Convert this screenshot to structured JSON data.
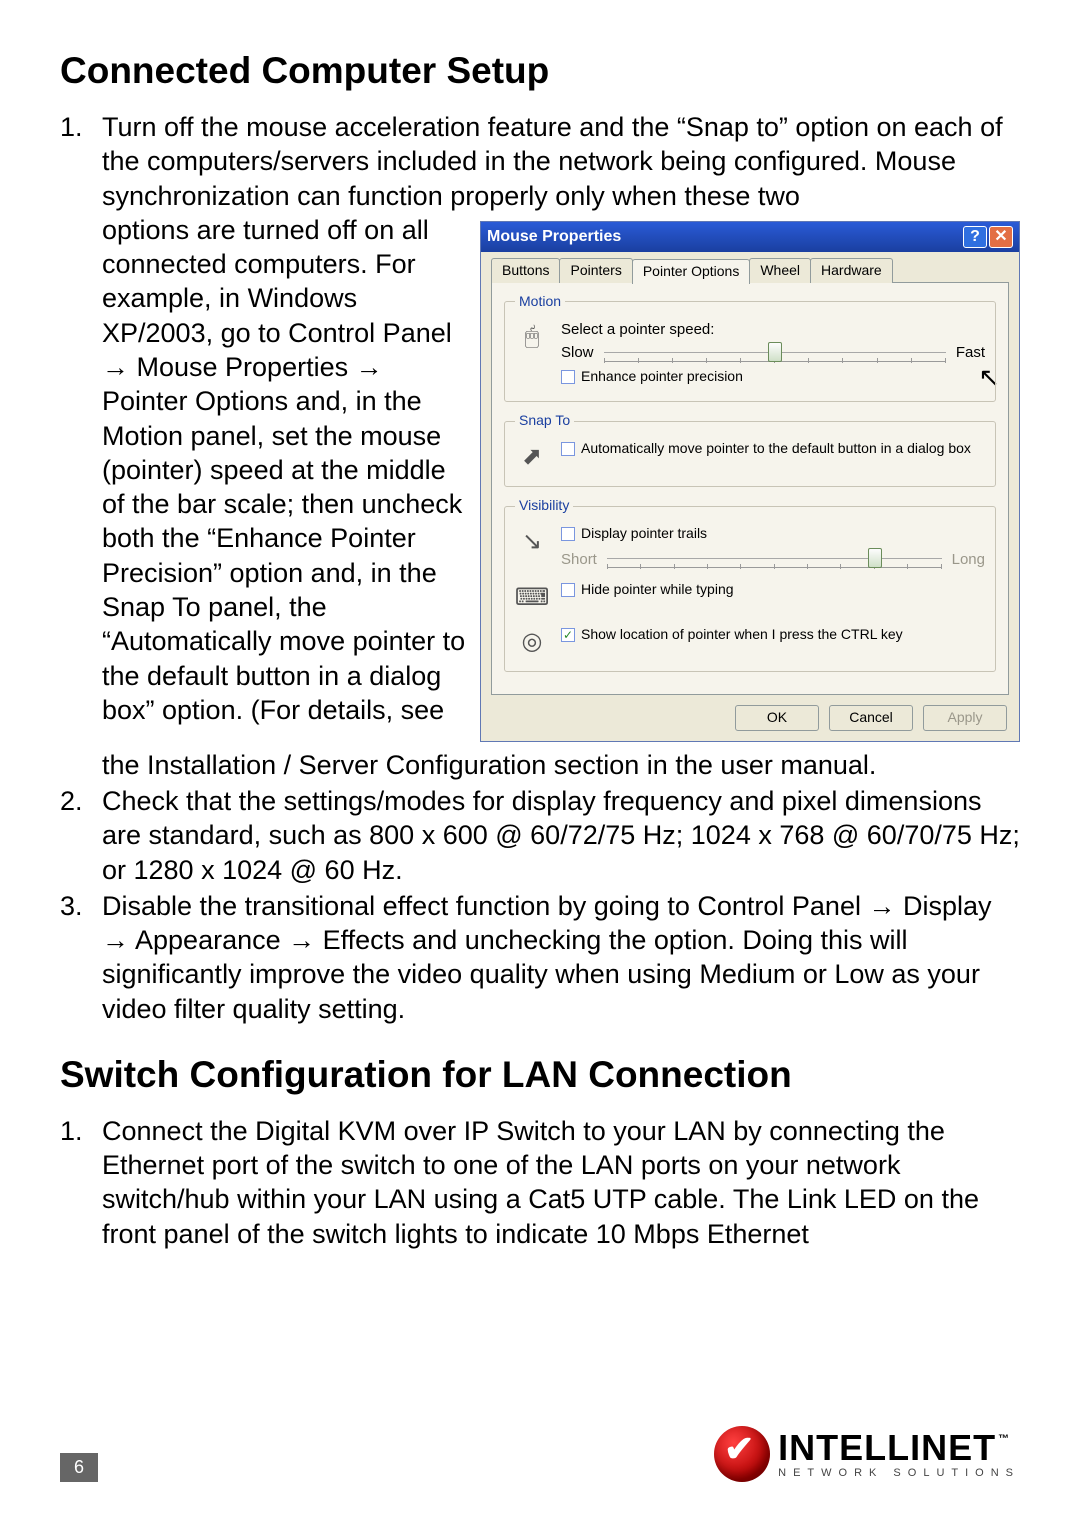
{
  "headings": {
    "h1": "Connected Computer Setup",
    "h2": "Switch Configuration for LAN Connection"
  },
  "section1": {
    "item1_num": "1.",
    "item1_intro": "Turn off the mouse acceleration feature and the “Snap to” option on each of the computers/servers included in the network being configured. Mouse synchronization can function properly only when these two ",
    "item1_wrap": "options are turned off on all connected computers. For example, in Windows XP/2003, go to Control Panel → Mouse Properties → Pointer Options and, in the Motion panel, set the mouse (pointer) speed at the middle of the bar scale; then uncheck both the “Enhance Pointer Precision” option and, in the Snap To panel, the “Automatically move pointer to the default button in a dialog box” option. (For details, see ",
    "item1_tail": "the Installation / Server Configuration section in the user manual.",
    "item2_num": "2.",
    "item2": "Check that the settings/modes for display frequency and pixel dimensions are standard, such as 800 x 600 @ 60/72/75 Hz; 1024 x 768 @ 60/70/75 Hz; or 1280 x 1024 @ 60 Hz.",
    "item3_num": "3.",
    "item3": "Disable the transitional effect function by going to Control Panel → Display → Appearance → Effects and unchecking the option. Doing this will significantly improve the video quality when using Medium or Low as your video filter quality setting."
  },
  "section2": {
    "item1_num": "1.",
    "item1": "Connect the Digital KVM over IP Switch to your LAN by connecting the Ethernet port of the switch to one of the LAN ports on your network switch/hub within your LAN using a Cat5 UTP cable. The Link LED on the front panel of the switch lights to indicate 10 Mbps Ethernet"
  },
  "dialog": {
    "title": "Mouse Properties",
    "tabs": {
      "t0": "Buttons",
      "t1": "Pointers",
      "t2": "Pointer Options",
      "t3": "Wheel",
      "t4": "Hardware"
    },
    "motion": {
      "legend": "Motion",
      "select_label": "Select a pointer speed:",
      "slow": "Slow",
      "fast": "Fast",
      "speed_pct": 50,
      "enhance": "Enhance pointer precision",
      "enhance_checked": false
    },
    "snap": {
      "legend": "Snap To",
      "text": "Automatically move pointer to the default button in a dialog box",
      "checked": false
    },
    "visibility": {
      "legend": "Visibility",
      "trails": "Display pointer trails",
      "trails_checked": false,
      "short": "Short",
      "long": "Long",
      "trails_pct": 80,
      "hide": "Hide pointer while typing",
      "hide_checked": false,
      "ctrl": "Show location of pointer when I press the CTRL key",
      "ctrl_checked": true
    },
    "buttons": {
      "ok": "OK",
      "cancel": "Cancel",
      "apply": "Apply"
    },
    "colors": {
      "titlebar_grad_top": "#2a5bd7",
      "titlebar_grad_bottom": "#1a3fa0",
      "panel_bg": "#f6f4ec",
      "dialog_bg": "#ece9d8",
      "legend_color": "#1a3fa0",
      "close_bg": "#e36f44"
    }
  },
  "footer": {
    "page_number": "6",
    "brand_name": "INTELLINET",
    "brand_sub": "NETWORK SOLUTIONS",
    "brand_red": "#c81414"
  }
}
